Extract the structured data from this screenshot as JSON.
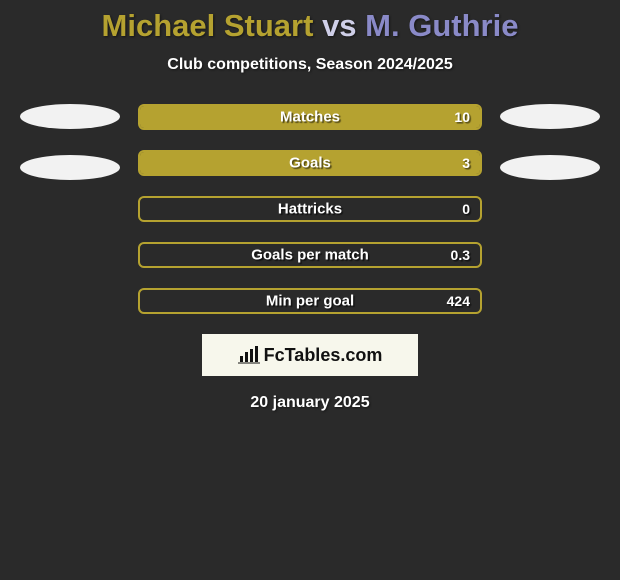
{
  "title": {
    "player1": "Michael Stuart",
    "vs": "vs",
    "player2": "M. Guthrie",
    "player1_color": "#b5a230",
    "vs_color": "#cfcfe8",
    "player2_color": "#8a8ac8"
  },
  "subtitle": "Club competitions, Season 2024/2025",
  "avatars": {
    "left": {
      "bg": "#f2f2f2"
    },
    "right": {
      "bg": "#f2f2f2"
    }
  },
  "bars": {
    "border_color": "#b5a230",
    "border_width": 2,
    "left_fill": "#b5a230",
    "right_fill": "#8a8ac8",
    "track_bg": "transparent",
    "rows": [
      {
        "label": "Matches",
        "left_val": "",
        "right_val": "10",
        "left_pct": 100,
        "right_pct": 0
      },
      {
        "label": "Goals",
        "left_val": "",
        "right_val": "3",
        "left_pct": 100,
        "right_pct": 0
      },
      {
        "label": "Hattricks",
        "left_val": "",
        "right_val": "0",
        "left_pct": 0,
        "right_pct": 0
      },
      {
        "label": "Goals per match",
        "left_val": "",
        "right_val": "0.3",
        "left_pct": 0,
        "right_pct": 0
      },
      {
        "label": "Min per goal",
        "left_val": "",
        "right_val": "424",
        "left_pct": 0,
        "right_pct": 0
      }
    ]
  },
  "brand": {
    "bg": "#f7f7ec",
    "text_color": "#111111",
    "text": "FcTables.com",
    "icon_color": "#111111"
  },
  "date": "20 january 2025"
}
